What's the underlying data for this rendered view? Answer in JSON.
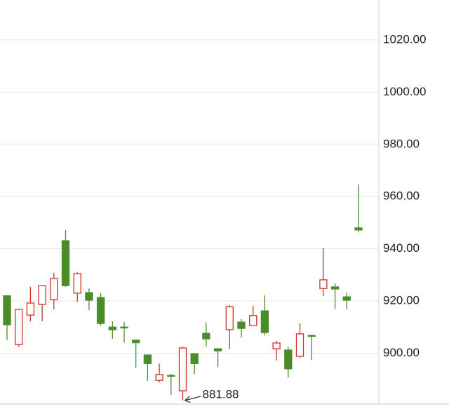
{
  "chart_data": {
    "type": "candlestick",
    "open": [
      922,
      903.3,
      914.6,
      918.7,
      920.5,
      943.1,
      923,
      923.2,
      921.3,
      910,
      910,
      905,
      899.3,
      889.6,
      891.5,
      885.6,
      899.8,
      907.6,
      901.7,
      909,
      911.9,
      910.6,
      916.2,
      901.7,
      901.2,
      898.8,
      906.8,
      924.8,
      925.4,
      921.6,
      948
    ],
    "high": [
      922.2,
      917,
      925.4,
      926,
      930.8,
      947.2,
      931,
      924.8,
      923,
      912.2,
      912,
      905,
      899.3,
      896,
      892,
      902.5,
      899.8,
      911.7,
      901.7,
      918.4,
      913,
      918.1,
      922.2,
      904.7,
      902.3,
      911.4,
      907.1,
      940.2,
      926.7,
      923.2,
      964.6
    ],
    "low": [
      905,
      902.5,
      912.2,
      912.2,
      916.8,
      925.4,
      919.7,
      916.5,
      910.6,
      905.5,
      904,
      894.5,
      889.4,
      888.8,
      884,
      881.88,
      892,
      902.5,
      894.7,
      901.7,
      906,
      910.6,
      906.8,
      897.2,
      890.7,
      898.2,
      897.4,
      921.9,
      917,
      916.8,
      946.3
    ],
    "close": [
      910.9,
      916.8,
      919.2,
      925.9,
      928.6,
      925.9,
      930.5,
      920.3,
      911.4,
      909,
      909.8,
      904,
      896,
      891.8,
      891.2,
      902,
      896,
      905.5,
      900.9,
      917.8,
      909.5,
      914.4,
      907.9,
      903.9,
      894,
      907.4,
      906.6,
      928.1,
      924.6,
      920.3,
      947.2
    ],
    "up_color": "#d0312d",
    "down_color": "#4a8c2a",
    "annotation_index": 15,
    "ylim": [
      880.5,
      1035.3
    ],
    "yticks": [
      {
        "value": 900,
        "label": "900.00"
      },
      {
        "value": 920,
        "label": "920.00"
      },
      {
        "value": 940,
        "label": "940.00"
      },
      {
        "value": 960,
        "label": "960.00"
      },
      {
        "value": 980,
        "label": "980.00"
      },
      {
        "value": 1000,
        "label": "1000.00"
      },
      {
        "value": 1020,
        "label": "1020.00"
      }
    ],
    "grid": true
  }
}
